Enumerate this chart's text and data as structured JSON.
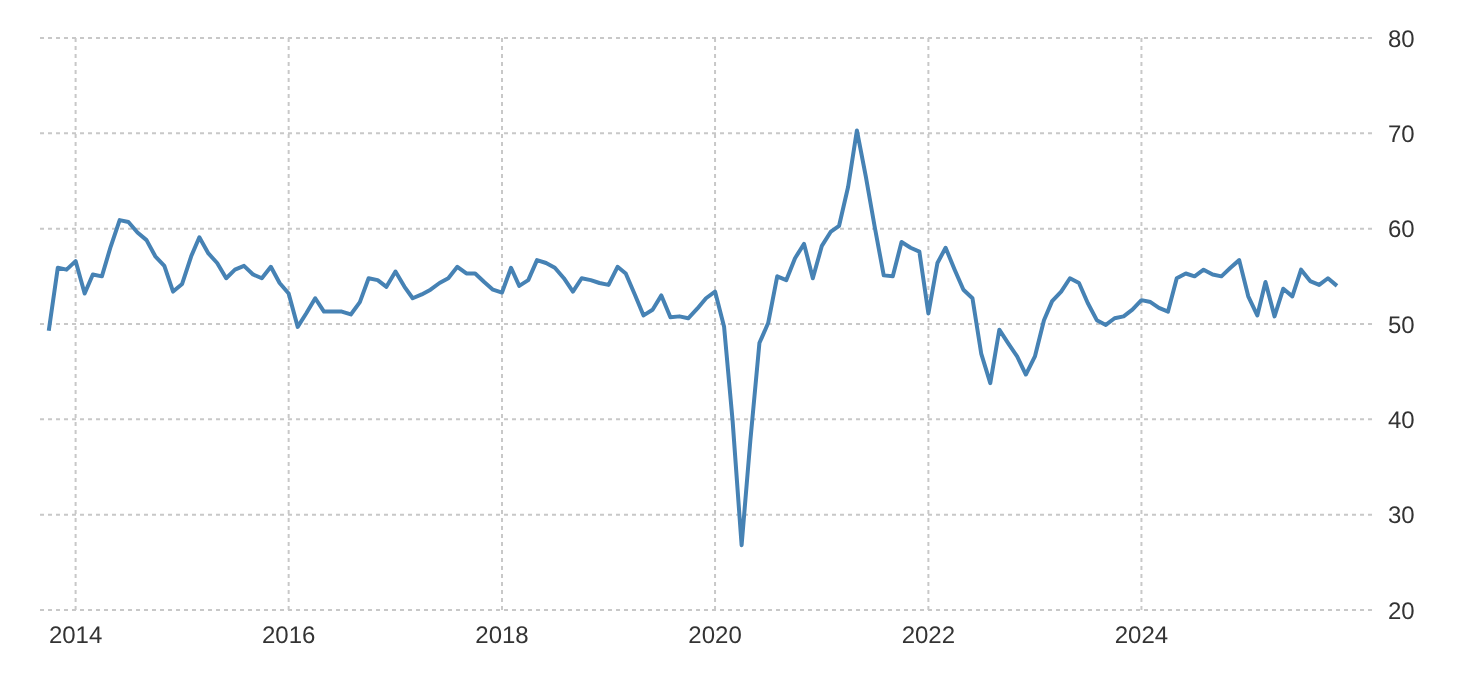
{
  "chart_data": {
    "type": "line",
    "x": [
      "2013-10",
      "2013-11",
      "2013-12",
      "2014-01",
      "2014-02",
      "2014-03",
      "2014-04",
      "2014-05",
      "2014-06",
      "2014-07",
      "2014-08",
      "2014-09",
      "2014-10",
      "2014-11",
      "2014-12",
      "2015-01",
      "2015-02",
      "2015-03",
      "2015-04",
      "2015-05",
      "2015-06",
      "2015-07",
      "2015-08",
      "2015-09",
      "2015-10",
      "2015-11",
      "2015-12",
      "2016-01",
      "2016-02",
      "2016-03",
      "2016-04",
      "2016-05",
      "2016-06",
      "2016-07",
      "2016-08",
      "2016-09",
      "2016-10",
      "2016-11",
      "2016-12",
      "2017-01",
      "2017-02",
      "2017-03",
      "2017-04",
      "2017-05",
      "2017-06",
      "2017-07",
      "2017-08",
      "2017-09",
      "2017-10",
      "2017-11",
      "2017-12",
      "2018-01",
      "2018-02",
      "2018-03",
      "2018-04",
      "2018-05",
      "2018-06",
      "2018-07",
      "2018-08",
      "2018-09",
      "2018-10",
      "2018-11",
      "2018-12",
      "2019-01",
      "2019-02",
      "2019-03",
      "2019-04",
      "2019-05",
      "2019-06",
      "2019-07",
      "2019-08",
      "2019-09",
      "2019-10",
      "2019-11",
      "2019-12",
      "2020-01",
      "2020-02",
      "2020-03",
      "2020-04",
      "2020-05",
      "2020-06",
      "2020-07",
      "2020-08",
      "2020-09",
      "2020-10",
      "2020-11",
      "2020-12",
      "2021-01",
      "2021-02",
      "2021-03",
      "2021-04",
      "2021-05",
      "2021-06",
      "2021-07",
      "2021-08",
      "2021-09",
      "2021-10",
      "2021-11",
      "2021-12",
      "2022-01",
      "2022-02",
      "2022-03",
      "2022-04",
      "2022-05",
      "2022-06",
      "2022-07",
      "2022-08",
      "2022-09",
      "2022-10",
      "2022-11",
      "2022-12",
      "2023-01",
      "2023-02",
      "2023-03",
      "2023-04",
      "2023-05",
      "2023-06",
      "2023-07",
      "2023-08",
      "2023-09",
      "2023-10",
      "2023-11",
      "2023-12",
      "2024-01",
      "2024-02",
      "2024-03",
      "2024-04",
      "2024-05",
      "2024-06",
      "2024-07",
      "2024-08",
      "2024-09",
      "2024-10",
      "2024-11",
      "2024-12",
      "2025-01",
      "2025-02",
      "2025-03",
      "2025-04",
      "2025-05",
      "2025-06",
      "2025-07",
      "2025-08",
      "2025-09",
      "2025-10",
      "2025-11"
    ],
    "series": [
      {
        "color": "#4682b4",
        "values": [
          49.3,
          55.9,
          55.7,
          56.6,
          53.2,
          55.2,
          55.0,
          58.1,
          60.9,
          60.7,
          59.6,
          58.8,
          57.1,
          56.1,
          53.4,
          54.2,
          57.1,
          59.1,
          57.4,
          56.4,
          54.8,
          55.7,
          56.1,
          55.2,
          54.8,
          56.0,
          54.3,
          53.2,
          49.7,
          51.1,
          52.7,
          51.3,
          51.3,
          51.3,
          51.0,
          52.3,
          54.8,
          54.6,
          53.9,
          55.5,
          53.9,
          52.7,
          53.1,
          53.6,
          54.3,
          54.8,
          56.0,
          55.3,
          55.3,
          54.4,
          53.6,
          53.3,
          55.9,
          54.0,
          54.6,
          56.7,
          56.4,
          55.9,
          54.8,
          53.4,
          54.8,
          54.6,
          54.3,
          54.1,
          56.0,
          55.3,
          53.1,
          50.9,
          51.5,
          53.0,
          50.7,
          50.8,
          50.6,
          51.6,
          52.7,
          53.4,
          49.7,
          39.9,
          26.8,
          37.8,
          48.0,
          50.1,
          55.0,
          54.6,
          56.9,
          58.4,
          54.8,
          58.2,
          59.7,
          60.3,
          64.4,
          70.3,
          65.4,
          60.2,
          55.1,
          55.0,
          58.6,
          58.0,
          57.6,
          51.1,
          56.4,
          58.0,
          55.7,
          53.6,
          52.7,
          46.9,
          43.8,
          49.4,
          48.0,
          46.6,
          44.7,
          46.6,
          50.4,
          52.4,
          53.4,
          54.8,
          54.3,
          52.2,
          50.4,
          49.9,
          50.6,
          50.8,
          51.5,
          52.5,
          52.3,
          51.7,
          51.3,
          54.8,
          55.3,
          55.0,
          55.7,
          55.2,
          55.0,
          55.9,
          56.7,
          52.9,
          50.9,
          54.4,
          50.8,
          53.7,
          52.9,
          55.7,
          54.5,
          54.1,
          54.8,
          54.0
        ]
      }
    ],
    "xlim": [
      "2013-09",
      "2026-03"
    ],
    "xticks": [
      "2014",
      "2016",
      "2018",
      "2020",
      "2022",
      "2024"
    ],
    "ylim": [
      20,
      80
    ],
    "yticks": [
      20,
      30,
      40,
      50,
      60,
      70,
      80
    ],
    "grid": true,
    "marker": "none",
    "line_style": "solid"
  }
}
